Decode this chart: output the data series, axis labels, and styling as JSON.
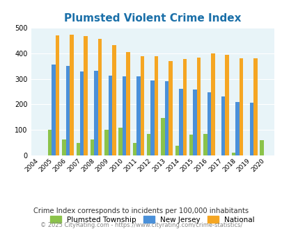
{
  "title": "Plumsted Violent Crime Index",
  "years": [
    2004,
    2005,
    2006,
    2007,
    2008,
    2009,
    2010,
    2011,
    2012,
    2013,
    2014,
    2015,
    2016,
    2017,
    2018,
    2019,
    2020
  ],
  "plumsted": [
    0,
    100,
    63,
    50,
    63,
    100,
    108,
    50,
    85,
    148,
    40,
    83,
    85,
    0,
    13,
    0,
    60
  ],
  "new_jersey": [
    0,
    355,
    350,
    328,
    330,
    312,
    310,
    310,
    293,
    290,
    262,
    257,
    247,
    230,
    210,
    207,
    0
  ],
  "national": [
    0,
    470,
    472,
    467,
    455,
    432,
    405,
    387,
    387,
    368,
    377,
    383,
    398,
    394,
    380,
    379,
    0
  ],
  "plumsted_color": "#8bc34a",
  "nj_color": "#4a90d9",
  "national_color": "#f5a623",
  "plot_bg": "#e8f4f8",
  "ylim": [
    0,
    500
  ],
  "yticks": [
    0,
    100,
    200,
    300,
    400,
    500
  ],
  "footer_note": "Crime Index corresponds to incidents per 100,000 inhabitants",
  "copyright": "© 2025 CityRating.com - https://www.cityrating.com/crime-statistics/",
  "title_color": "#1a6fa8",
  "legend_labels": [
    "Plumsted Township",
    "New Jersey",
    "National"
  ],
  "bar_width": 0.27
}
